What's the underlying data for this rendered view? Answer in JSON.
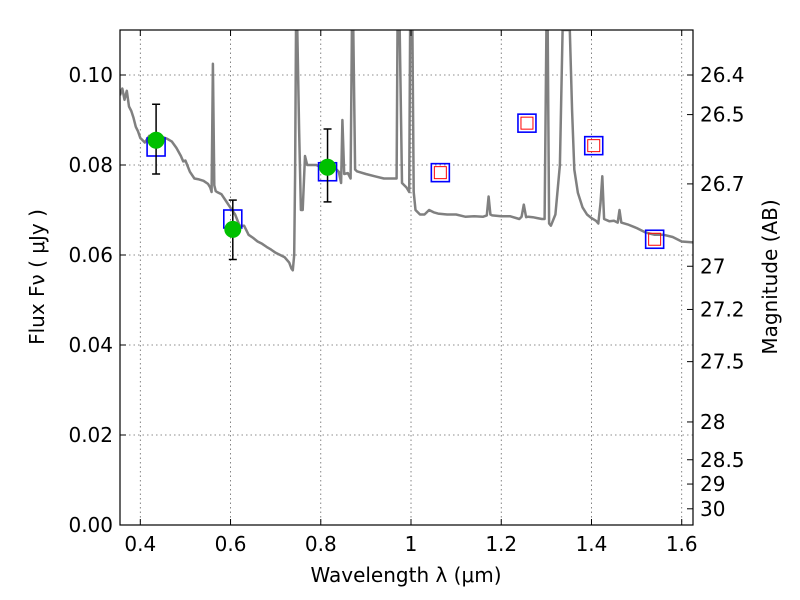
{
  "chart_data": {
    "type": "scatter",
    "title": "",
    "xlabel": "Wavelength  λ (μm)",
    "ylabel": "Flux  Fν  ( μJy )",
    "y2label": "Magnitude (AB)",
    "xlim": [
      0.355,
      1.625
    ],
    "ylim": [
      0.0,
      0.11
    ],
    "grid": true,
    "x_ticks": [
      {
        "value": 0.4,
        "label": "0.4"
      },
      {
        "value": 0.6,
        "label": "0.6"
      },
      {
        "value": 0.8,
        "label": "0.8"
      },
      {
        "value": 1.0,
        "label": "1"
      },
      {
        "value": 1.2,
        "label": "1.2"
      },
      {
        "value": 1.4,
        "label": "1.4"
      },
      {
        "value": 1.6,
        "label": "1.6"
      }
    ],
    "y_ticks": [
      {
        "value": 0.0,
        "label": "0.00"
      },
      {
        "value": 0.02,
        "label": "0.02"
      },
      {
        "value": 0.04,
        "label": "0.04"
      },
      {
        "value": 0.06,
        "label": "0.06"
      },
      {
        "value": 0.08,
        "label": "0.08"
      },
      {
        "value": 0.1,
        "label": "0.10"
      }
    ],
    "mag_ticks": [
      {
        "label": "26.4",
        "flux": 0.1
      },
      {
        "label": "26.5",
        "flux": 0.0912
      },
      {
        "label": "26.7",
        "flux": 0.0758
      },
      {
        "label": "27",
        "flux": 0.0575
      },
      {
        "label": "27.2",
        "flux": 0.0479
      },
      {
        "label": "27.5",
        "flux": 0.0363
      },
      {
        "label": "28",
        "flux": 0.0229
      },
      {
        "label": "28.5",
        "flux": 0.0145
      },
      {
        "label": "29",
        "flux": 0.0091
      },
      {
        "label": "30",
        "flux": 0.0036
      }
    ],
    "colors": {
      "model": "#808080",
      "observed": "#00c000",
      "errorbar": "#000000",
      "model_box": "#0000ff",
      "predicted_box": "#ff0000"
    },
    "series": [
      {
        "kind": "model_spectrum",
        "points": [
          [
            0.355,
            0.0955
          ],
          [
            0.36,
            0.097
          ],
          [
            0.365,
            0.0945
          ],
          [
            0.37,
            0.0965
          ],
          [
            0.375,
            0.093
          ],
          [
            0.38,
            0.092
          ],
          [
            0.385,
            0.0905
          ],
          [
            0.39,
            0.0885
          ],
          [
            0.395,
            0.0875
          ],
          [
            0.4,
            0.086
          ],
          [
            0.405,
            0.0855
          ],
          [
            0.41,
            0.085
          ],
          [
            0.42,
            0.0865
          ],
          [
            0.43,
            0.0858
          ],
          [
            0.44,
            0.0855
          ],
          [
            0.45,
            0.0862
          ],
          [
            0.46,
            0.0858
          ],
          [
            0.47,
            0.0852
          ],
          [
            0.48,
            0.0838
          ],
          [
            0.49,
            0.082
          ],
          [
            0.495,
            0.0808
          ],
          [
            0.5,
            0.081
          ],
          [
            0.51,
            0.0785
          ],
          [
            0.52,
            0.077
          ],
          [
            0.53,
            0.0768
          ],
          [
            0.54,
            0.0765
          ],
          [
            0.55,
            0.0758
          ],
          [
            0.555,
            0.075
          ],
          [
            0.558,
            0.074
          ],
          [
            0.561,
            0.1025
          ],
          [
            0.564,
            0.0755
          ],
          [
            0.567,
            0.0742
          ],
          [
            0.57,
            0.074
          ],
          [
            0.58,
            0.0735
          ],
          [
            0.59,
            0.072
          ],
          [
            0.6,
            0.0705
          ],
          [
            0.61,
            0.069
          ],
          [
            0.62,
            0.0665
          ],
          [
            0.63,
            0.0665
          ],
          [
            0.64,
            0.0645
          ],
          [
            0.65,
            0.0638
          ],
          [
            0.66,
            0.063
          ],
          [
            0.67,
            0.0625
          ],
          [
            0.68,
            0.0618
          ],
          [
            0.69,
            0.0612
          ],
          [
            0.7,
            0.0605
          ],
          [
            0.71,
            0.06
          ],
          [
            0.72,
            0.0595
          ],
          [
            0.73,
            0.0583
          ],
          [
            0.735,
            0.057
          ],
          [
            0.738,
            0.0566
          ],
          [
            0.741,
            0.06
          ],
          [
            0.743,
            0.078
          ],
          [
            0.745,
            0.11
          ],
          [
            0.748,
            0.11
          ],
          [
            0.752,
            0.088
          ],
          [
            0.756,
            0.07
          ],
          [
            0.76,
            0.07
          ],
          [
            0.765,
            0.082
          ],
          [
            0.77,
            0.08
          ],
          [
            0.78,
            0.08
          ],
          [
            0.79,
            0.08
          ],
          [
            0.8,
            0.0795
          ],
          [
            0.81,
            0.0795
          ],
          [
            0.83,
            0.0795
          ],
          [
            0.84,
            0.0785
          ],
          [
            0.845,
            0.076
          ],
          [
            0.848,
            0.09
          ],
          [
            0.852,
            0.078
          ],
          [
            0.86,
            0.0782
          ],
          [
            0.866,
            0.077
          ],
          [
            0.869,
            0.11
          ],
          [
            0.872,
            0.11
          ],
          [
            0.876,
            0.079
          ],
          [
            0.88,
            0.0786
          ],
          [
            0.9,
            0.078
          ],
          [
            0.92,
            0.0775
          ],
          [
            0.94,
            0.077
          ],
          [
            0.96,
            0.077
          ],
          [
            0.968,
            0.077
          ],
          [
            0.97,
            0.11
          ],
          [
            0.975,
            0.11
          ],
          [
            0.98,
            0.076
          ],
          [
            0.99,
            0.075
          ],
          [
            0.996,
            0.074
          ],
          [
            0.998,
            0.11
          ],
          [
            1.003,
            0.11
          ],
          [
            1.006,
            0.074
          ],
          [
            1.01,
            0.07
          ],
          [
            1.02,
            0.069
          ],
          [
            1.03,
            0.069
          ],
          [
            1.04,
            0.07
          ],
          [
            1.05,
            0.0695
          ],
          [
            1.06,
            0.0692
          ],
          [
            1.08,
            0.069
          ],
          [
            1.1,
            0.069
          ],
          [
            1.12,
            0.0685
          ],
          [
            1.14,
            0.0686
          ],
          [
            1.16,
            0.0685
          ],
          [
            1.168,
            0.0688
          ],
          [
            1.172,
            0.073
          ],
          [
            1.176,
            0.069
          ],
          [
            1.18,
            0.0688
          ],
          [
            1.2,
            0.0686
          ],
          [
            1.22,
            0.0686
          ],
          [
            1.24,
            0.068
          ],
          [
            1.245,
            0.0685
          ],
          [
            1.25,
            0.0712
          ],
          [
            1.255,
            0.0684
          ],
          [
            1.26,
            0.0685
          ],
          [
            1.27,
            0.0684
          ],
          [
            1.28,
            0.0682
          ],
          [
            1.29,
            0.068
          ],
          [
            1.296,
            0.068
          ],
          [
            1.3,
            0.11
          ],
          [
            1.303,
            0.11
          ],
          [
            1.306,
            0.067
          ],
          [
            1.31,
            0.0665
          ],
          [
            1.32,
            0.069
          ],
          [
            1.33,
            0.08
          ],
          [
            1.336,
            0.11
          ],
          [
            1.352,
            0.11
          ],
          [
            1.357,
            0.092
          ],
          [
            1.362,
            0.079
          ],
          [
            1.37,
            0.0738
          ],
          [
            1.38,
            0.0706
          ],
          [
            1.39,
            0.069
          ],
          [
            1.4,
            0.0682
          ],
          [
            1.41,
            0.0676
          ],
          [
            1.415,
            0.067
          ],
          [
            1.42,
            0.0715
          ],
          [
            1.424,
            0.0775
          ],
          [
            1.428,
            0.068
          ],
          [
            1.44,
            0.0675
          ],
          [
            1.45,
            0.0676
          ],
          [
            1.458,
            0.0672
          ],
          [
            1.462,
            0.07
          ],
          [
            1.466,
            0.0672
          ],
          [
            1.48,
            0.0668
          ],
          [
            1.5,
            0.066
          ],
          [
            1.52,
            0.065
          ],
          [
            1.54,
            0.0645
          ],
          [
            1.56,
            0.0645
          ],
          [
            1.58,
            0.064
          ],
          [
            1.6,
            0.063
          ],
          [
            1.625,
            0.0628
          ]
        ]
      },
      {
        "kind": "observed_photometry",
        "points": [
          {
            "x": 0.435,
            "y": 0.0855,
            "yerr_low": 0.078,
            "yerr_high": 0.0935
          },
          {
            "x": 0.605,
            "y": 0.0657,
            "yerr_low": 0.059,
            "yerr_high": 0.0722
          },
          {
            "x": 0.815,
            "y": 0.0795,
            "yerr_low": 0.0718,
            "yerr_high": 0.088
          }
        ]
      },
      {
        "kind": "model_band_flux",
        "points": [
          {
            "x": 0.435,
            "y": 0.084
          },
          {
            "x": 0.605,
            "y": 0.068
          },
          {
            "x": 0.815,
            "y": 0.0785
          },
          {
            "x": 1.065,
            "y": 0.0783
          },
          {
            "x": 1.257,
            "y": 0.0893
          },
          {
            "x": 1.405,
            "y": 0.0843
          },
          {
            "x": 1.54,
            "y": 0.0635
          }
        ]
      },
      {
        "kind": "predicted_flux",
        "points": [
          {
            "x": 1.065,
            "y": 0.0783
          },
          {
            "x": 1.257,
            "y": 0.0893
          },
          {
            "x": 1.405,
            "y": 0.0843
          },
          {
            "x": 1.54,
            "y": 0.0635
          }
        ]
      }
    ]
  }
}
